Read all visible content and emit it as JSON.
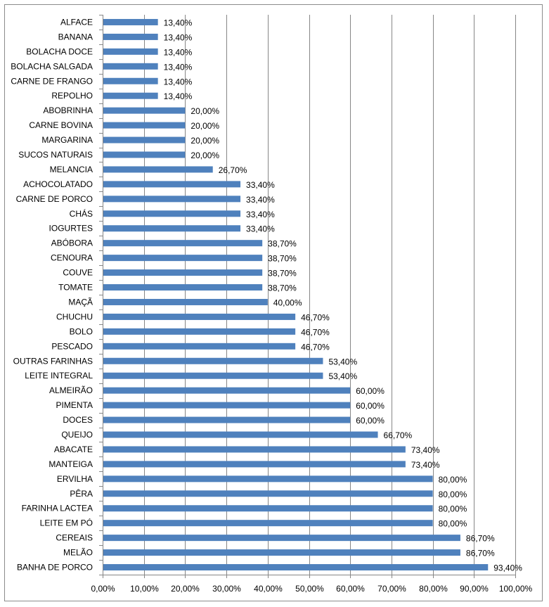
{
  "chart_data": {
    "type": "bar",
    "orientation": "horizontal",
    "categories": [
      "ALFACE",
      "BANANA",
      "BOLACHA DOCE",
      "BOLACHA SALGADA",
      "CARNE DE FRANGO",
      "REPOLHO",
      "ABOBRINHA",
      "CARNE BOVINA",
      "MARGARINA",
      "SUCOS NATURAIS",
      "MELANCIA",
      "ACHOCOLATADO",
      "CARNE DE PORCO",
      "CHÁS",
      "IOGURTES",
      "ABÓBORA",
      "CENOURA",
      "COUVE",
      "TOMATE",
      "MAÇÃ",
      "CHUCHU",
      "BOLO",
      "PESCADO",
      "OUTRAS FARINHAS",
      "LEITE INTEGRAL",
      "ALMEIRÃO",
      "PIMENTA",
      "DOCES",
      "QUEIJO",
      "ABACATE",
      "MANTEIGA",
      "ERVILHA",
      "PÊRA",
      "FARINHA LACTEA",
      "LEITE EM PÓ",
      "CEREAIS",
      "MELÃO",
      "BANHA DE PORCO"
    ],
    "values": [
      13.4,
      13.4,
      13.4,
      13.4,
      13.4,
      13.4,
      20.0,
      20.0,
      20.0,
      20.0,
      26.7,
      33.4,
      33.4,
      33.4,
      33.4,
      38.7,
      38.7,
      38.7,
      38.7,
      40.0,
      46.7,
      46.7,
      46.7,
      53.4,
      53.4,
      60.0,
      60.0,
      60.0,
      66.7,
      73.4,
      73.4,
      80.0,
      80.0,
      80.0,
      80.0,
      86.7,
      86.7,
      93.4
    ],
    "value_labels": [
      "13,40%",
      "13,40%",
      "13,40%",
      "13,40%",
      "13,40%",
      "13,40%",
      "20,00%",
      "20,00%",
      "20,00%",
      "20,00%",
      "26,70%",
      "33,40%",
      "33,40%",
      "33,40%",
      "33,40%",
      "38,70%",
      "38,70%",
      "38,70%",
      "38,70%",
      "40,00%",
      "46,70%",
      "46,70%",
      "46,70%",
      "53,40%",
      "53,40%",
      "60,00%",
      "60,00%",
      "60,00%",
      "66,70%",
      "73,40%",
      "73,40%",
      "80,00%",
      "80,00%",
      "80,00%",
      "80,00%",
      "86,70%",
      "86,70%",
      "93,40%"
    ],
    "x_ticks": [
      "0,00%",
      "10,00%",
      "20,00%",
      "30,00%",
      "40,00%",
      "50,00%",
      "60,00%",
      "70,00%",
      "80,00%",
      "90,00%",
      "100,00%"
    ],
    "xlim": [
      0,
      100
    ],
    "title": "",
    "xlabel": "",
    "ylabel": "",
    "grid": "vertical",
    "legend": "none",
    "bar_color": "#4f81bd",
    "grid_color": "#868686"
  }
}
